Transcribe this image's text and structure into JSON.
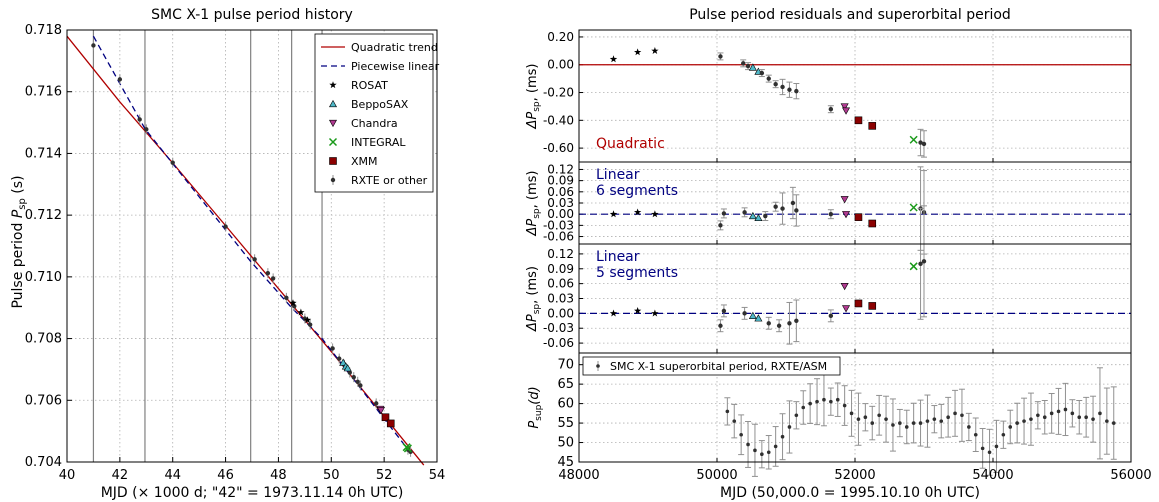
{
  "colors": {
    "quadratic": "#b00000",
    "piecewise": "#000080",
    "rosat": "#000000",
    "beppo": "#4fb8c8",
    "chandra": "#b03a90",
    "integral": "#1a9a1a",
    "xmm": "#8b0000",
    "rxte": "#303030",
    "errorbar": "#909090"
  },
  "chart_data": [
    {
      "type": "scatter",
      "title": "SMC X-1 pulse period history",
      "xlabel": "MJD (× 1000 d; \"42\" = 1973.11.14 0h UTC)",
      "ylabel": "Pulse period P_sp (s)",
      "ylabel_main": "Pulse period ",
      "ylabel_var": "P",
      "ylabel_sub": "sp",
      "ylabel_end": " (s)",
      "xlim": [
        40,
        54
      ],
      "ylim": [
        0.704,
        0.718
      ],
      "xticks": [
        "40",
        "42",
        "44",
        "46",
        "48",
        "50",
        "52",
        "54"
      ],
      "yticks": [
        "0.704",
        "0.706",
        "0.708",
        "0.710",
        "0.712",
        "0.714",
        "0.716",
        "0.718"
      ],
      "grid": true,
      "legend_position": "top-right",
      "legend": [
        "Quadratic trend",
        "Piecewise linear",
        "ROSAT",
        "BeppoSAX",
        "Chandra",
        "INTEGRAL",
        "XMM",
        "RXTE or other"
      ],
      "segment_boundaries": [
        41.0,
        42.95,
        46.95,
        48.5,
        49.65
      ],
      "quadratic_trend": [
        [
          40.0,
          0.7178
        ],
        [
          42.0,
          0.71567
        ],
        [
          44.0,
          0.71369
        ],
        [
          46.0,
          0.71166
        ],
        [
          48.0,
          0.70962
        ],
        [
          50.0,
          0.70758
        ],
        [
          52.0,
          0.70548
        ],
        [
          53.5,
          0.7039
        ]
      ],
      "piecewise_linear": [
        [
          41.0,
          0.7178
        ],
        [
          42.95,
          0.7148
        ],
        [
          46.95,
          0.7105
        ],
        [
          48.5,
          0.709
        ],
        [
          49.65,
          0.708
        ],
        [
          53.0,
          0.7043
        ]
      ],
      "series": [
        {
          "name": "RXTE or other",
          "marker": "dot",
          "points": [
            [
              41.0,
              0.7175
            ],
            [
              42.0,
              0.7164
            ],
            [
              42.75,
              0.7151
            ],
            [
              43.0,
              0.71478
            ],
            [
              44.0,
              0.7137
            ],
            [
              46.0,
              0.71163
            ],
            [
              47.1,
              0.71057
            ],
            [
              47.6,
              0.71012
            ],
            [
              47.8,
              0.70995
            ],
            [
              48.3,
              0.70932
            ],
            [
              48.6,
              0.70905
            ],
            [
              49.0,
              0.70865
            ],
            [
              49.2,
              0.70845
            ],
            [
              50.05,
              0.70768
            ],
            [
              50.3,
              0.70735
            ],
            [
              50.5,
              0.70715
            ],
            [
              50.7,
              0.7069
            ],
            [
              50.85,
              0.70675
            ],
            [
              51.0,
              0.7066
            ],
            [
              51.1,
              0.70648
            ],
            [
              51.7,
              0.7059
            ],
            [
              52.9,
              0.7044
            ],
            [
              53.0,
              0.70433
            ]
          ]
        },
        {
          "name": "ROSAT",
          "marker": "star",
          "points": [
            [
              48.55,
              0.70915
            ],
            [
              48.85,
              0.70885
            ],
            [
              49.1,
              0.7086
            ]
          ]
        },
        {
          "name": "BeppoSAX",
          "marker": "triangle-up",
          "points": [
            [
              50.45,
              0.70722
            ],
            [
              50.55,
              0.7071
            ],
            [
              50.62,
              0.70704
            ]
          ]
        },
        {
          "name": "Chandra",
          "marker": "triangle-down",
          "points": [
            [
              51.85,
              0.70572
            ],
            [
              51.88,
              0.70568
            ]
          ]
        },
        {
          "name": "INTEGRAL",
          "marker": "x",
          "points": [
            [
              52.85,
              0.70448
            ],
            [
              52.9,
              0.70444
            ]
          ]
        },
        {
          "name": "XMM",
          "marker": "square",
          "points": [
            [
              52.05,
              0.70545
            ],
            [
              52.25,
              0.70525
            ]
          ]
        }
      ]
    },
    {
      "type": "scatter",
      "title": "Pulse period residuals and superorbital period",
      "xlabel": "MJD (50,000.0 = 1995.10.10 0h UTC)",
      "xlim": [
        48000,
        56000
      ],
      "xticks": [
        "48000",
        "50000",
        "52000",
        "54000",
        "56000"
      ],
      "grid": true,
      "panels": [
        {
          "label": "Quadratic",
          "ylabel": "ΔP_sp, (ms)",
          "ylim": [
            -0.7,
            0.25
          ],
          "yticks": [
            "0.20",
            "0.00",
            "-0.20",
            "-0.40",
            "-0.60"
          ],
          "reference_line": 0.0,
          "points": [
            [
              48500,
              0.04,
              "star"
            ],
            [
              48850,
              0.09,
              "star"
            ],
            [
              49100,
              0.1,
              "star"
            ],
            [
              50050,
              0.06,
              "dot"
            ],
            [
              50380,
              0.01,
              "dot"
            ],
            [
              50450,
              -0.01,
              "dot"
            ],
            [
              50520,
              -0.02,
              "triangle-up"
            ],
            [
              50600,
              -0.05,
              "triangle-up"
            ],
            [
              50650,
              -0.06,
              "dot"
            ],
            [
              50750,
              -0.1,
              "dot"
            ],
            [
              50850,
              -0.14,
              "dot"
            ],
            [
              50950,
              -0.16,
              "dot"
            ],
            [
              51050,
              -0.18,
              "dot"
            ],
            [
              51150,
              -0.19,
              "dot"
            ],
            [
              51650,
              -0.32,
              "dot"
            ],
            [
              51850,
              -0.3,
              "triangle-down"
            ],
            [
              51870,
              -0.33,
              "triangle-down"
            ],
            [
              52050,
              -0.4,
              "square"
            ],
            [
              52250,
              -0.44,
              "square"
            ],
            [
              52850,
              -0.54,
              "x"
            ],
            [
              52950,
              -0.56,
              "dot"
            ],
            [
              53000,
              -0.57,
              "dot"
            ]
          ]
        },
        {
          "label_lines": [
            "Linear",
            "6 segments"
          ],
          "ylabel": "ΔP_sp, (ms)",
          "ylim": [
            -0.08,
            0.14
          ],
          "yticks": [
            "0.12",
            "0.09",
            "0.06",
            "0.03",
            "0.00",
            "-0.03",
            "-0.06"
          ],
          "reference_line": 0.0,
          "points": [
            [
              48500,
              0.0,
              "star"
            ],
            [
              48850,
              0.005,
              "star"
            ],
            [
              49100,
              0.0,
              "star"
            ],
            [
              50050,
              -0.03,
              "dot"
            ],
            [
              50100,
              0.002,
              "dot"
            ],
            [
              50400,
              0.005,
              "dot"
            ],
            [
              50520,
              -0.005,
              "triangle-up"
            ],
            [
              50600,
              -0.01,
              "triangle-up"
            ],
            [
              50700,
              -0.005,
              "dot"
            ],
            [
              50850,
              0.02,
              "dot"
            ],
            [
              50950,
              0.015,
              "dot"
            ],
            [
              51100,
              0.03,
              "dot"
            ],
            [
              51150,
              0.01,
              "dot"
            ],
            [
              51650,
              0.0,
              "dot"
            ],
            [
              51850,
              0.04,
              "triangle-down"
            ],
            [
              51870,
              0.0,
              "triangle-down"
            ],
            [
              52050,
              -0.008,
              "square"
            ],
            [
              52250,
              -0.025,
              "square"
            ],
            [
              52850,
              0.018,
              "x"
            ],
            [
              52950,
              0.015,
              "dot"
            ],
            [
              53000,
              0.005,
              "dot"
            ]
          ]
        },
        {
          "label_lines": [
            "Linear",
            "5 segments"
          ],
          "ylabel": "ΔP_sp, (ms)",
          "ylim": [
            -0.08,
            0.14
          ],
          "yticks": [
            "0.12",
            "0.09",
            "0.06",
            "0.03",
            "0.00",
            "-0.03",
            "-0.06"
          ],
          "reference_line": 0.0,
          "points": [
            [
              48500,
              0.0,
              "star"
            ],
            [
              48850,
              0.005,
              "star"
            ],
            [
              49100,
              0.0,
              "star"
            ],
            [
              50050,
              -0.025,
              "dot"
            ],
            [
              50100,
              0.005,
              "dot"
            ],
            [
              50400,
              0.0,
              "dot"
            ],
            [
              50520,
              -0.005,
              "triangle-up"
            ],
            [
              50600,
              -0.01,
              "triangle-up"
            ],
            [
              50750,
              -0.02,
              "dot"
            ],
            [
              50900,
              -0.025,
              "dot"
            ],
            [
              51050,
              -0.02,
              "dot"
            ],
            [
              51150,
              -0.015,
              "dot"
            ],
            [
              51650,
              -0.005,
              "dot"
            ],
            [
              51850,
              0.055,
              "triangle-down"
            ],
            [
              51870,
              0.01,
              "triangle-down"
            ],
            [
              52050,
              0.02,
              "square"
            ],
            [
              52250,
              0.015,
              "square"
            ],
            [
              52850,
              0.095,
              "x"
            ],
            [
              52950,
              0.1,
              "dot"
            ],
            [
              53000,
              0.105,
              "dot"
            ]
          ]
        },
        {
          "ylabel": "P_sup (d)",
          "ylim": [
            45,
            73
          ],
          "yticks": [
            "70",
            "65",
            "60",
            "55",
            "50",
            "45"
          ],
          "legend": "SMC X-1 superorbital period, RXTE/ASM",
          "points": [
            [
              50150,
              58.0
            ],
            [
              50250,
              55.5
            ],
            [
              50350,
              52.0
            ],
            [
              50450,
              49.5
            ],
            [
              50550,
              48.0
            ],
            [
              50650,
              47.0
            ],
            [
              50750,
              47.5
            ],
            [
              50850,
              49.0
            ],
            [
              50950,
              51.5
            ],
            [
              51050,
              54.0
            ],
            [
              51150,
              57.0
            ],
            [
              51250,
              59.0
            ],
            [
              51350,
              60.0
            ],
            [
              51450,
              60.5
            ],
            [
              51550,
              61.0
            ],
            [
              51650,
              60.5
            ],
            [
              51750,
              61.0
            ],
            [
              51850,
              59.5
            ],
            [
              51950,
              57.5
            ],
            [
              52050,
              56.0
            ],
            [
              52150,
              56.5
            ],
            [
              52250,
              55.0
            ],
            [
              52350,
              57.0
            ],
            [
              52450,
              56.0
            ],
            [
              52550,
              54.5
            ],
            [
              52650,
              55.0
            ],
            [
              52750,
              54.0
            ],
            [
              52850,
              55.0
            ],
            [
              52950,
              55.0
            ],
            [
              53050,
              55.5
            ],
            [
              53150,
              56.0
            ],
            [
              53250,
              55.5
            ],
            [
              53350,
              56.5
            ],
            [
              53450,
              57.5
            ],
            [
              53550,
              57.0
            ],
            [
              53650,
              54.0
            ],
            [
              53750,
              52.0
            ],
            [
              53850,
              48.5
            ],
            [
              53950,
              47.5
            ],
            [
              54050,
              49.0
            ],
            [
              54150,
              52.0
            ],
            [
              54250,
              54.0
            ],
            [
              54350,
              55.0
            ],
            [
              54450,
              55.5
            ],
            [
              54550,
              56.0
            ],
            [
              54650,
              57.0
            ],
            [
              54750,
              56.5
            ],
            [
              54850,
              57.5
            ],
            [
              54950,
              58.0
            ],
            [
              55050,
              58.5
            ],
            [
              55150,
              57.5
            ],
            [
              55250,
              56.5
            ],
            [
              55350,
              56.5
            ],
            [
              55450,
              56.0
            ],
            [
              55550,
              57.5
            ],
            [
              55650,
              55.5
            ],
            [
              55750,
              55.0
            ]
          ]
        }
      ]
    }
  ]
}
